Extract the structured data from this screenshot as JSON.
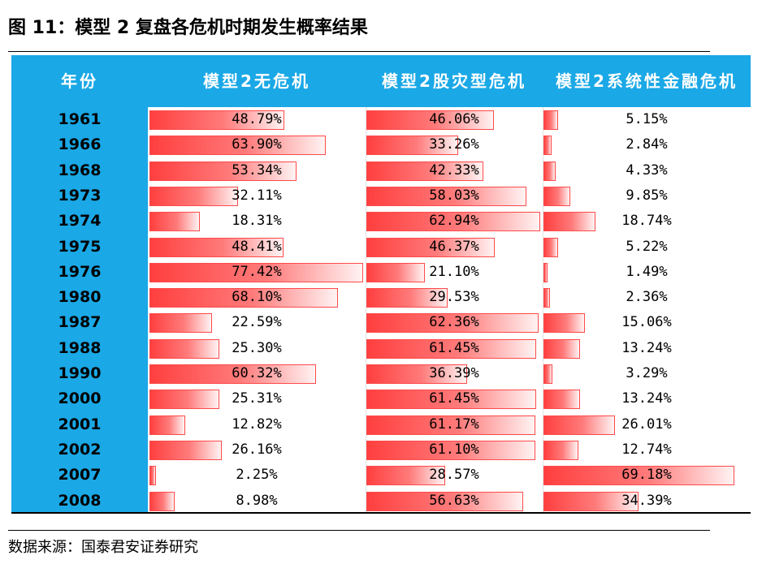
{
  "title": "图 11：模型 2 复盘各危机时期发生概率结果",
  "source": "数据来源：国泰君安证券研究",
  "colors": {
    "header_bg": "#1aa8e6",
    "bar_start": "#ff3f3f",
    "bar_end": "#fff3f3",
    "bar_border": "#ff4a4a"
  },
  "chart_data": {
    "type": "table",
    "columns": [
      "年份",
      "模型2无危机",
      "模型2股灾型危机",
      "模型2系统性金融危机"
    ],
    "years": [
      "1961",
      "1966",
      "1968",
      "1973",
      "1974",
      "1975",
      "1976",
      "1980",
      "1987",
      "1988",
      "1990",
      "2000",
      "2001",
      "2002",
      "2007",
      "2008"
    ],
    "series": [
      {
        "name": "模型2无危机",
        "values": [
          48.79,
          63.9,
          53.34,
          32.11,
          18.31,
          48.41,
          77.42,
          68.1,
          22.59,
          25.3,
          60.32,
          25.31,
          12.82,
          26.16,
          2.25,
          8.98
        ],
        "labels": [
          "48.79%",
          "63.90%",
          "53.34%",
          "32.11%",
          "18.31%",
          "48.41%",
          "77.42%",
          "68.10%",
          "22.59%",
          "25.30%",
          "60.32%",
          "25.31%",
          "12.82%",
          "26.16%",
          "2.25%",
          "8.98%"
        ]
      },
      {
        "name": "模型2股灾型危机",
        "values": [
          46.06,
          33.26,
          42.33,
          58.03,
          62.94,
          46.37,
          21.1,
          29.53,
          62.36,
          61.45,
          36.39,
          61.45,
          61.17,
          61.1,
          28.57,
          56.63
        ],
        "labels": [
          "46.06%",
          "33.26%",
          "42.33%",
          "58.03%",
          "62.94%",
          "46.37%",
          "21.10%",
          "29.53%",
          "62.36%",
          "61.45%",
          "36.39%",
          "61.45%",
          "61.17%",
          "61.10%",
          "28.57%",
          "56.63%"
        ]
      },
      {
        "name": "模型2系统性金融危机",
        "values": [
          5.15,
          2.84,
          4.33,
          9.85,
          18.74,
          5.22,
          1.49,
          2.36,
          15.06,
          13.24,
          3.29,
          13.24,
          26.01,
          12.74,
          69.18,
          34.39
        ],
        "labels": [
          "5.15%",
          "2.84%",
          "4.33%",
          "9.85%",
          "18.74%",
          "5.22%",
          "1.49%",
          "2.36%",
          "15.06%",
          "13.24%",
          "3.29%",
          "13.24%",
          "26.01%",
          "12.74%",
          "69.18%",
          "34.39%"
        ]
      }
    ]
  }
}
